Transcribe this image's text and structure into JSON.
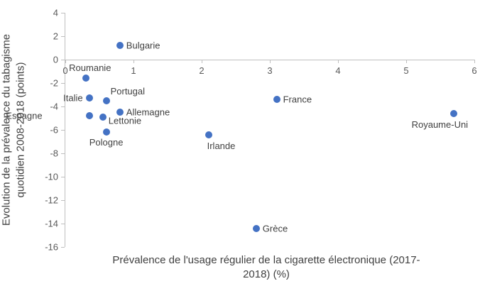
{
  "chart_data": {
    "type": "scatter",
    "title": "",
    "xlabel": "Prévalence de l'usage régulier de la cigarette électronique (2017-2018) (%)",
    "xlabel_lines": [
      "Prévalence de l'usage régulier de la cigarette électronique (2017-",
      "2018) (%)"
    ],
    "ylabel": "Evolution de la prévalence du tabagisme quotidien 2008-2018 (points)",
    "ylabel_lines": [
      "Evolution de la prévalence du tabagisme",
      "quotidien  2008-2018 (points)"
    ],
    "xlim": [
      0,
      6
    ],
    "ylim": [
      -16,
      4
    ],
    "x_ticks": [
      0,
      1,
      2,
      3,
      4,
      5,
      6
    ],
    "y_ticks": [
      4,
      2,
      0,
      -2,
      -4,
      -6,
      -8,
      -10,
      -12,
      -14,
      -16
    ],
    "grid": false,
    "legend": false,
    "marker_color": "#4472C4",
    "axis_color": "#BFBFBF",
    "tick_label_color": "#595959",
    "label_color": "#404040",
    "points": [
      {
        "label": "Bulgarie",
        "x": 0.8,
        "y": 1.2,
        "label_pos": "right"
      },
      {
        "label": "Roumanie",
        "x": 0.3,
        "y": -1.6,
        "label_pos": "above"
      },
      {
        "label": "Italie",
        "x": 0.35,
        "y": -3.3,
        "label_pos": "left"
      },
      {
        "label": "Portugal",
        "x": 0.6,
        "y": -3.5,
        "label_pos": "above-right"
      },
      {
        "label": "France",
        "x": 3.1,
        "y": -3.4,
        "label_pos": "right"
      },
      {
        "label": "Allemagne",
        "x": 0.8,
        "y": -4.5,
        "label_pos": "right"
      },
      {
        "label": "Espagne",
        "x": 0.35,
        "y": -4.8,
        "label_pos": "far-left"
      },
      {
        "label": "Lettonie",
        "x": 0.55,
        "y": -4.9,
        "label_pos": "right-below"
      },
      {
        "label": "Pologne",
        "x": 0.6,
        "y": -6.2,
        "label_pos": "below"
      },
      {
        "label": "Irlande",
        "x": 2.1,
        "y": -6.4,
        "label_pos": "below-right"
      },
      {
        "label": "Royaume-Uni",
        "x": 5.7,
        "y": -4.6,
        "label_pos": "below-left"
      },
      {
        "label": "Grèce",
        "x": 2.8,
        "y": -14.4,
        "label_pos": "right"
      }
    ]
  }
}
